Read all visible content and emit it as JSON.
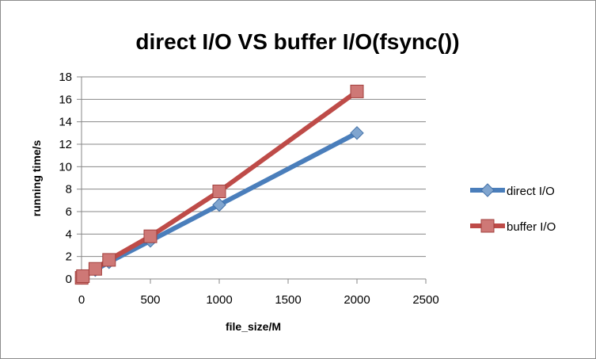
{
  "chart_data": {
    "type": "line",
    "title": "direct I/O VS buffer I/O(fsync())",
    "xlabel": "file_size/M",
    "ylabel": "running time/s",
    "xlim": [
      0,
      2500
    ],
    "ylim": [
      0,
      18
    ],
    "xticks": [
      0,
      500,
      1000,
      1500,
      2000,
      2500
    ],
    "yticks": [
      0,
      2,
      4,
      6,
      8,
      10,
      12,
      14,
      16,
      18
    ],
    "grid": "horizontal",
    "legend_position": "right",
    "series": [
      {
        "name": "direct I/O",
        "color": "#4a7ebb",
        "marker": "diamond",
        "points": [
          [
            1,
            0.1
          ],
          [
            10,
            0.2
          ],
          [
            100,
            0.8
          ],
          [
            200,
            1.5
          ],
          [
            500,
            3.4
          ],
          [
            1000,
            6.6
          ],
          [
            2000,
            13.0
          ]
        ]
      },
      {
        "name": "buffer I/O",
        "color": "#be4b48",
        "marker": "square",
        "points": [
          [
            1,
            0.1
          ],
          [
            10,
            0.25
          ],
          [
            100,
            0.9
          ],
          [
            200,
            1.7
          ],
          [
            500,
            3.8
          ],
          [
            1000,
            7.8
          ],
          [
            2000,
            16.7
          ]
        ]
      }
    ]
  }
}
